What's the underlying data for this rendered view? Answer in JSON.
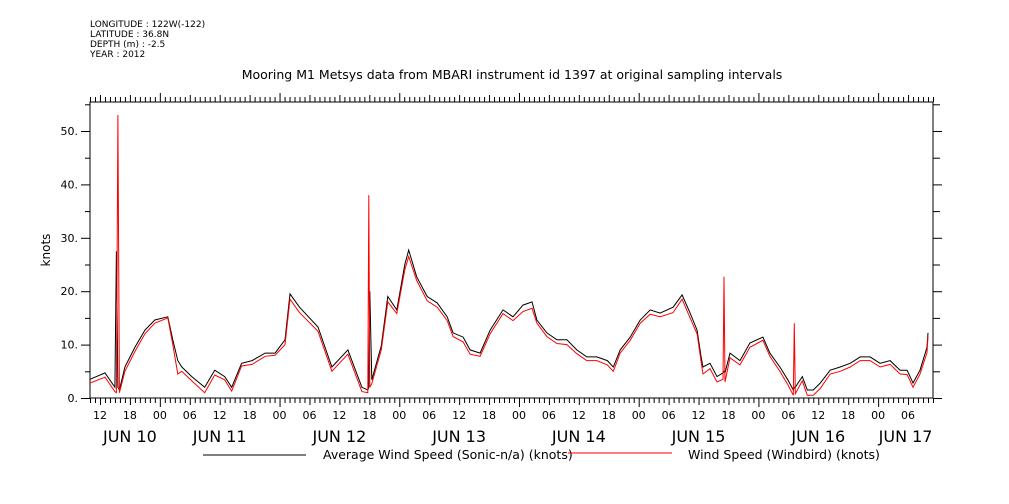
{
  "header": {
    "longitude": "LONGITUDE : 122W(-122)",
    "latitude": "LATITUDE : 36.8N",
    "depth": "DEPTH (m) : -2.5",
    "year": "YEAR : 2012"
  },
  "chart_data": {
    "type": "line",
    "title": "Mooring M1 Metsys data from MBARI instrument id 1397 at original sampling intervals",
    "ylabel": "knots",
    "xlabel": "",
    "x_units": "hours since JUN 10 00:00",
    "xlim": [
      10,
      179
    ],
    "ylim": [
      0,
      55
    ],
    "y_ticks": [
      0,
      10,
      20,
      30,
      40,
      50
    ],
    "y_tick_labels": [
      "0.",
      "10.",
      "20.",
      "30.",
      "40.",
      "50."
    ],
    "x_hour_labels": {
      "start_hour": 12,
      "step": 6,
      "labels": [
        "12",
        "18",
        "00",
        "06",
        "12",
        "18",
        "00",
        "06",
        "12",
        "18",
        "00",
        "06",
        "12",
        "18",
        "00",
        "06",
        "12",
        "18",
        "00",
        "06",
        "12",
        "18",
        "00",
        "06",
        "12",
        "18",
        "00",
        "06",
        "12",
        "18",
        "00",
        "06"
      ]
    },
    "date_labels": [
      {
        "label": "JUN 10",
        "day_start": 0
      },
      {
        "label": "JUN 11",
        "day_start": 24
      },
      {
        "label": "JUN 12",
        "day_start": 48
      },
      {
        "label": "JUN 13",
        "day_start": 72
      },
      {
        "label": "JUN 14",
        "day_start": 96
      },
      {
        "label": "JUN 15",
        "day_start": 120
      },
      {
        "label": "JUN 16",
        "day_start": 144
      },
      {
        "label": "JUN 17",
        "day_start": 168
      }
    ],
    "series": [
      {
        "name": "Average Wind Speed (Sonic-n/a) (knots)",
        "color": "#000000"
      },
      {
        "name": "Wind Speed (Windbird) (knots)",
        "color": "#ff0000"
      }
    ],
    "points_columns": [
      "hour",
      "average_sonic",
      "windbird"
    ],
    "points": [
      [
        10.0,
        3.5,
        2.8
      ],
      [
        13.0,
        4.7,
        3.9
      ],
      [
        15.0,
        2.0,
        1.2
      ],
      [
        15.3,
        27.5,
        1.0
      ],
      [
        15.6,
        2.0,
        53.0
      ],
      [
        15.9,
        1.5,
        1.0
      ],
      [
        17.0,
        5.8,
        5.0
      ],
      [
        19.0,
        9.5,
        8.7
      ],
      [
        21.0,
        12.7,
        12.0
      ],
      [
        23.0,
        14.6,
        14.0
      ],
      [
        25.6,
        15.2,
        15.0
      ],
      [
        26.6,
        10.9,
        10.0
      ],
      [
        27.6,
        7.0,
        4.5
      ],
      [
        28.4,
        5.8,
        5.0
      ],
      [
        30.4,
        4.0,
        3.2
      ],
      [
        33.0,
        2.0,
        1.0
      ],
      [
        35.0,
        5.2,
        4.3
      ],
      [
        37.0,
        4.0,
        3.4
      ],
      [
        38.4,
        2.0,
        1.3
      ],
      [
        40.4,
        6.5,
        6.0
      ],
      [
        42.5,
        7.0,
        6.3
      ],
      [
        45.1,
        8.4,
        7.8
      ],
      [
        47.1,
        8.4,
        8.0
      ],
      [
        49.1,
        10.9,
        10.0
      ],
      [
        50.1,
        19.5,
        18.5
      ],
      [
        52.0,
        17.0,
        16.0
      ],
      [
        55.7,
        13.3,
        12.5
      ],
      [
        58.5,
        5.8,
        5.0
      ],
      [
        61.7,
        9.0,
        8.2
      ],
      [
        64.5,
        2.0,
        1.2
      ],
      [
        65.7,
        1.5,
        1.0
      ],
      [
        65.9,
        2.0,
        38.0
      ],
      [
        66.1,
        20.0,
        2.0
      ],
      [
        66.5,
        3.4,
        2.7
      ],
      [
        68.4,
        9.8,
        9.0
      ],
      [
        69.7,
        19.0,
        18.0
      ],
      [
        71.5,
        16.5,
        15.8
      ],
      [
        73.1,
        25.0,
        24.0
      ],
      [
        73.9,
        27.7,
        26.5
      ],
      [
        75.5,
        22.7,
        22.0
      ],
      [
        77.6,
        19.0,
        18.2
      ],
      [
        79.6,
        17.8,
        17.0
      ],
      [
        81.6,
        15.2,
        14.5
      ],
      [
        82.8,
        12.2,
        11.5
      ],
      [
        84.8,
        11.4,
        10.5
      ],
      [
        86.2,
        9.0,
        8.2
      ],
      [
        88.2,
        8.4,
        7.8
      ],
      [
        90.2,
        12.7,
        12.0
      ],
      [
        92.8,
        16.5,
        15.8
      ],
      [
        94.8,
        15.2,
        14.5
      ],
      [
        96.8,
        17.4,
        16.2
      ],
      [
        98.6,
        18.0,
        16.8
      ],
      [
        99.6,
        14.6,
        14.0
      ],
      [
        101.6,
        12.2,
        11.5
      ],
      [
        103.6,
        10.9,
        10.2
      ],
      [
        105.6,
        10.9,
        10.0
      ],
      [
        107.6,
        9.0,
        8.3
      ],
      [
        109.6,
        7.7,
        7.0
      ],
      [
        111.6,
        7.7,
        7.0
      ],
      [
        113.7,
        7.0,
        6.2
      ],
      [
        114.9,
        5.8,
        5.0
      ],
      [
        116.3,
        9.0,
        8.4
      ],
      [
        118.3,
        11.4,
        10.8
      ],
      [
        120.3,
        14.6,
        14.0
      ],
      [
        122.3,
        16.5,
        15.7
      ],
      [
        124.3,
        15.9,
        15.2
      ],
      [
        126.9,
        17.0,
        16.0
      ],
      [
        128.7,
        19.3,
        18.5
      ],
      [
        130.3,
        15.9,
        15.0
      ],
      [
        131.7,
        12.7,
        12.0
      ],
      [
        132.5,
        7.7,
        6.8
      ],
      [
        132.9,
        5.8,
        4.5
      ],
      [
        134.3,
        6.5,
        5.5
      ],
      [
        135.7,
        4.0,
        3.0
      ],
      [
        136.9,
        4.7,
        3.5
      ],
      [
        137.1,
        5.0,
        22.7
      ],
      [
        137.3,
        4.7,
        3.0
      ],
      [
        138.3,
        8.4,
        7.5
      ],
      [
        140.3,
        7.0,
        6.2
      ],
      [
        142.3,
        10.3,
        9.5
      ],
      [
        144.9,
        11.4,
        10.8
      ],
      [
        146.3,
        8.4,
        7.8
      ],
      [
        148.3,
        5.8,
        5.0
      ],
      [
        149.9,
        3.4,
        2.5
      ],
      [
        151.0,
        1.5,
        0.5
      ],
      [
        151.2,
        2.0,
        14.0
      ],
      [
        151.4,
        2.0,
        0.8
      ],
      [
        152.8,
        4.0,
        3.2
      ],
      [
        153.8,
        1.5,
        0.5
      ],
      [
        155.0,
        1.5,
        0.5
      ],
      [
        156.4,
        2.8,
        1.8
      ],
      [
        158.4,
        5.2,
        4.5
      ],
      [
        160.4,
        5.8,
        5.0
      ],
      [
        162.4,
        6.5,
        5.8
      ],
      [
        164.4,
        7.7,
        7.0
      ],
      [
        166.4,
        7.7,
        7.0
      ],
      [
        168.4,
        6.5,
        5.8
      ],
      [
        170.4,
        7.0,
        6.3
      ],
      [
        172.4,
        5.2,
        4.5
      ],
      [
        173.8,
        5.2,
        4.4
      ],
      [
        175.0,
        2.8,
        2.0
      ],
      [
        176.4,
        5.2,
        4.5
      ],
      [
        177.8,
        9.5,
        8.5
      ],
      [
        178.0,
        12.2,
        11.5
      ]
    ],
    "legend_position": "bottom",
    "grid": false
  }
}
